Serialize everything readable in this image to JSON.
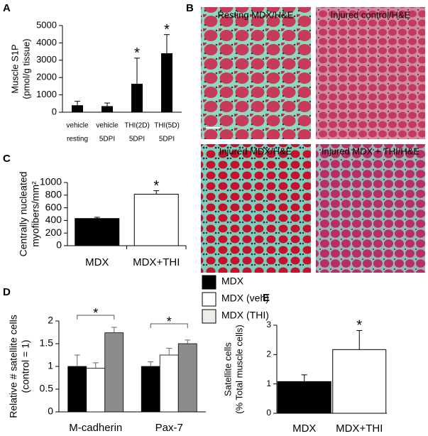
{
  "panel_labels": [
    "A",
    "B",
    "C",
    "D",
    "E"
  ],
  "images": [
    "Resting MDX/H&E",
    "Injured control/H&E",
    "Injured MDX/H&E",
    "Injured MDX + THI/H&E"
  ],
  "chart_data": [
    {
      "type": "bar",
      "ylabel": [
        "Muscle S1P",
        "(pmol/g tissue)"
      ],
      "categories": [
        [
          "vehicle",
          "resting"
        ],
        [
          "vehicle",
          "5DPI"
        ],
        [
          "THI(2D)",
          "5DPI"
        ],
        [
          "THI(5D)",
          "5DPI"
        ]
      ],
      "values": [
        380,
        330,
        1620,
        3380
      ],
      "errors": [
        250,
        200,
        1500,
        1100
      ],
      "color": "#000000",
      "ylim": [
        0,
        5000
      ],
      "yticks": [
        0,
        1000,
        2000,
        3000,
        4000,
        5000
      ],
      "annotations": [
        {
          "text": "*",
          "index": 2
        },
        {
          "text": "*",
          "index": 3
        }
      ]
    },
    {
      "type": "bar",
      "ylabel": [
        "Centrally nucleated",
        "myofibers/mm²"
      ],
      "categories": [
        "MDX",
        "MDX+THI"
      ],
      "values": [
        430,
        815
      ],
      "errors": [
        20,
        55
      ],
      "colors": [
        "#000000",
        "#ffffff"
      ],
      "ylim": [
        0,
        1000
      ],
      "yticks": [
        0,
        200,
        400,
        600,
        800,
        1000
      ],
      "annotations": [
        {
          "text": "*",
          "index": 1
        }
      ]
    },
    {
      "type": "grouped_bar",
      "ylabel": [
        "Relative # satellite cells",
        "(control = 1)"
      ],
      "categories": [
        "M-cadherin",
        "Pax-7"
      ],
      "series": [
        {
          "name": "MDX",
          "color": "#000000",
          "values": [
            1,
            1
          ],
          "errors": [
            0.25,
            0.1
          ]
        },
        {
          "name": "MDX (veh)",
          "color": "#ffffff",
          "values": [
            0.96,
            1.25
          ],
          "errors": [
            0.12,
            0.15
          ]
        },
        {
          "name": "MDX (THI)",
          "color": "#8c8c8c",
          "values": [
            1.74,
            1.5
          ],
          "errors": [
            0.12,
            0.08
          ]
        }
      ],
      "ylim": [
        0,
        2
      ],
      "yticks": [
        0,
        0.5,
        1,
        1.5,
        2
      ],
      "brackets": [
        {
          "text": "*",
          "index": 0
        },
        {
          "text": "*",
          "index": 1
        }
      ]
    },
    {
      "type": "bar",
      "ylabel": [
        "Satellite cells",
        "(% Total muscle cells)"
      ],
      "categories": [
        "MDX",
        "MDX+THI"
      ],
      "values": [
        1.08,
        2.17
      ],
      "errors": [
        0.23,
        0.65
      ],
      "colors": [
        "#000000",
        "#ffffff"
      ],
      "ylim": [
        0,
        3
      ],
      "yticks": [
        0,
        1,
        2,
        3
      ],
      "annotations": [
        {
          "text": "*",
          "index": 1
        }
      ]
    }
  ]
}
